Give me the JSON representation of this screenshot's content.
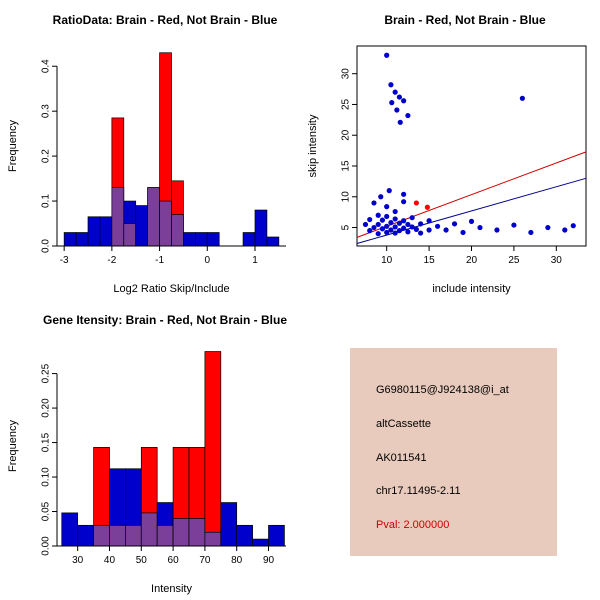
{
  "chart_data": [
    {
      "id": "ratio-histogram",
      "type": "bar",
      "title": "RatioData: Brain - Red, Not Brain - Blue",
      "xlabel": "Log2 Ratio Skip/Include",
      "ylabel": "Frequency",
      "xlim": [
        -3.15,
        1.65
      ],
      "ylim": [
        0,
        0.445
      ],
      "bin_width": 0.25,
      "xticks": {
        "values": [
          -3,
          -2,
          -1,
          0,
          1
        ],
        "labels": [
          "-3",
          "-2",
          "-1",
          "0",
          "1"
        ]
      },
      "yticks": {
        "values": [
          0,
          0.1,
          0.2,
          0.3,
          0.4
        ],
        "labels": [
          "0.0",
          "0.1",
          "0.2",
          "0.3",
          "0.4"
        ]
      },
      "colors": {
        "red": "#FF0000",
        "blue": "#0000CC",
        "overlap": "#7B3F99"
      },
      "legend_note": "Brain = red, Not Brain = blue, overlap = purple",
      "bins": [
        {
          "x": -3.0,
          "red": 0,
          "blue": 0.03
        },
        {
          "x": -2.75,
          "red": 0,
          "blue": 0.03
        },
        {
          "x": -2.5,
          "red": 0,
          "blue": 0.065
        },
        {
          "x": -2.25,
          "red": 0,
          "blue": 0.065
        },
        {
          "x": -2.0,
          "red": 0.285,
          "blue": 0.13
        },
        {
          "x": -1.75,
          "red": 0.05,
          "blue": 0.1
        },
        {
          "x": -1.5,
          "red": 0,
          "blue": 0.09
        },
        {
          "x": -1.25,
          "red": 0.13,
          "blue": 0.13
        },
        {
          "x": -1.0,
          "red": 0.43,
          "blue": 0.1
        },
        {
          "x": -0.75,
          "red": 0.145,
          "blue": 0.07
        },
        {
          "x": -0.5,
          "red": 0,
          "blue": 0.03
        },
        {
          "x": -0.25,
          "red": 0,
          "blue": 0.03
        },
        {
          "x": 0.0,
          "red": 0,
          "blue": 0.03
        },
        {
          "x": 0.25,
          "red": 0,
          "blue": 0
        },
        {
          "x": 0.5,
          "red": 0,
          "blue": 0
        },
        {
          "x": 0.75,
          "red": 0,
          "blue": 0.03
        },
        {
          "x": 1.0,
          "red": 0,
          "blue": 0.08
        },
        {
          "x": 1.25,
          "red": 0,
          "blue": 0.02
        }
      ]
    },
    {
      "id": "intensity-scatter",
      "type": "scatter",
      "title": "Brain - Red, Not Brain - Blue",
      "xlabel": "include intensity",
      "ylabel": "skip intensity",
      "xlim": [
        6.5,
        33.5
      ],
      "ylim": [
        2,
        34.5
      ],
      "xticks": {
        "values": [
          10,
          15,
          20,
          25,
          30
        ],
        "labels": [
          "10",
          "15",
          "20",
          "25",
          "30"
        ]
      },
      "yticks": {
        "values": [
          5,
          10,
          15,
          20,
          25,
          30
        ],
        "labels": [
          "5",
          "10",
          "15",
          "20",
          "25",
          "30"
        ]
      },
      "point_color_blue": "#0000CC",
      "point_color_red": "#FF0000",
      "blue_points": [
        [
          7.5,
          5.5
        ],
        [
          8,
          4.5
        ],
        [
          8,
          6.3
        ],
        [
          8.5,
          5
        ],
        [
          8.5,
          9
        ],
        [
          9,
          4
        ],
        [
          9,
          5.5
        ],
        [
          9,
          7
        ],
        [
          9.3,
          10
        ],
        [
          9.5,
          4.8
        ],
        [
          9.5,
          6.2
        ],
        [
          10,
          4.2
        ],
        [
          10,
          5.2
        ],
        [
          10,
          6.8
        ],
        [
          10,
          8.4
        ],
        [
          10.3,
          11
        ],
        [
          10.5,
          4.6
        ],
        [
          10.5,
          5.8
        ],
        [
          11,
          4.1
        ],
        [
          11,
          5.1
        ],
        [
          11,
          6.4
        ],
        [
          11,
          7.6
        ],
        [
          11.5,
          4.5
        ],
        [
          11.5,
          5.7
        ],
        [
          12,
          4.9
        ],
        [
          12,
          6.1
        ],
        [
          12,
          9.2
        ],
        [
          12,
          10.4
        ],
        [
          12.5,
          4.3
        ],
        [
          12.5,
          5.5
        ],
        [
          13,
          5.1
        ],
        [
          13,
          6.6
        ],
        [
          13.5,
          4.7
        ],
        [
          14,
          4.1
        ],
        [
          14,
          5.6
        ],
        [
          15,
          4.6
        ],
        [
          15,
          6.1
        ],
        [
          16,
          5.2
        ],
        [
          17,
          4.6
        ],
        [
          18,
          5.6
        ],
        [
          19,
          4.2
        ],
        [
          20,
          6
        ],
        [
          21,
          5
        ],
        [
          23,
          4.6
        ],
        [
          25,
          5.4
        ],
        [
          27,
          4.2
        ],
        [
          29,
          5
        ],
        [
          31,
          4.6
        ],
        [
          32,
          5.3
        ],
        [
          10,
          33
        ],
        [
          10.5,
          28.2
        ],
        [
          11,
          27
        ],
        [
          11.5,
          26.2
        ],
        [
          10.6,
          25.3
        ],
        [
          12,
          25.6
        ],
        [
          11.2,
          24.1
        ],
        [
          12.5,
          23.2
        ],
        [
          11.6,
          22.1
        ],
        [
          26,
          26
        ]
      ],
      "red_points": [
        [
          13.5,
          9
        ],
        [
          14.8,
          8.3
        ]
      ],
      "fit_lines": [
        {
          "color": "#CC0000",
          "x1": 6.5,
          "y1": 3.4,
          "x2": 33.5,
          "y2": 17.3
        },
        {
          "color": "#00008B",
          "x1": 6.5,
          "y1": 2.4,
          "x2": 33.5,
          "y2": 13.0
        }
      ]
    },
    {
      "id": "gene-intensity-histogram",
      "type": "bar",
      "title": "Gene Itensity: Brain - Red, Not Brain - Blue",
      "xlabel": "Intensity",
      "ylabel": "Frequency",
      "xlim": [
        23.5,
        95.5
      ],
      "ylim": [
        0,
        0.29
      ],
      "bin_width": 5,
      "xticks": {
        "values": [
          30,
          40,
          50,
          60,
          70,
          80,
          90
        ],
        "labels": [
          "30",
          "40",
          "50",
          "60",
          "70",
          "80",
          "90"
        ]
      },
      "yticks": {
        "values": [
          0,
          0.05,
          0.1,
          0.15,
          0.2,
          0.25
        ],
        "labels": [
          "0.00",
          "0.05",
          "0.10",
          "0.15",
          "0.20",
          "0.25"
        ]
      },
      "colors": {
        "red": "#FF0000",
        "blue": "#0000CC",
        "overlap": "#7B3F99"
      },
      "legend_note": "Brain = red, Not Brain = blue, overlap = purple",
      "bins": [
        {
          "x": 25,
          "red": 0,
          "blue": 0.048
        },
        {
          "x": 30,
          "red": 0,
          "blue": 0.03
        },
        {
          "x": 35,
          "red": 0.143,
          "blue": 0.03
        },
        {
          "x": 40,
          "red": 0.03,
          "blue": 0.112
        },
        {
          "x": 45,
          "red": 0.03,
          "blue": 0.112
        },
        {
          "x": 50,
          "red": 0.143,
          "blue": 0.048
        },
        {
          "x": 55,
          "red": 0.03,
          "blue": 0.063
        },
        {
          "x": 60,
          "red": 0.143,
          "blue": 0.04
        },
        {
          "x": 65,
          "red": 0.143,
          "blue": 0.04
        },
        {
          "x": 70,
          "red": 0.282,
          "blue": 0.02
        },
        {
          "x": 75,
          "red": 0,
          "blue": 0.063
        },
        {
          "x": 80,
          "red": 0,
          "blue": 0.03
        },
        {
          "x": 85,
          "red": 0,
          "blue": 0.01
        },
        {
          "x": 90,
          "red": 0,
          "blue": 0.03
        }
      ]
    }
  ],
  "info_panel": {
    "background": "#E9CBBD",
    "lines": [
      {
        "text": "G6980115@J924138@i_at",
        "color": "#000000"
      },
      {
        "text": "altCassette",
        "color": "#000000"
      },
      {
        "text": "AK011541",
        "color": "#000000"
      },
      {
        "text": "chr17.11495-2.11",
        "color": "#000000"
      },
      {
        "text": "Pval: 2.000000",
        "color": "#CC0000"
      }
    ]
  }
}
